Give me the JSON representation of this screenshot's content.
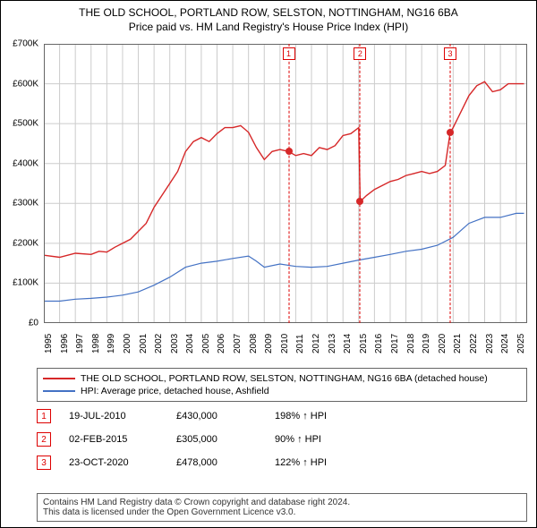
{
  "title": "THE OLD SCHOOL, PORTLAND ROW, SELSTON, NOTTINGHAM, NG16 6BA",
  "subtitle": "Price paid vs. HM Land Registry's House Price Index (HPI)",
  "chart": {
    "type": "line",
    "background_color": "#ffffff",
    "grid_color": "#cccccc",
    "xlim": [
      1995,
      2025.7
    ],
    "ylim": [
      0,
      700000
    ],
    "ytick_step": 100000,
    "ytick_labels": [
      "£0",
      "£100K",
      "£200K",
      "£300K",
      "£400K",
      "£500K",
      "£600K",
      "£700K"
    ],
    "xtick_step": 1,
    "xtick_labels": [
      "1995",
      "1996",
      "1997",
      "1998",
      "1999",
      "2000",
      "2001",
      "2002",
      "2003",
      "2004",
      "2005",
      "2006",
      "2007",
      "2008",
      "2009",
      "2010",
      "2011",
      "2012",
      "2013",
      "2014",
      "2015",
      "2016",
      "2017",
      "2018",
      "2019",
      "2020",
      "2021",
      "2022",
      "2023",
      "2024",
      "2025"
    ],
    "label_fontsize": 10,
    "series": [
      {
        "name": "property",
        "label": "THE OLD SCHOOL, PORTLAND ROW, SELSTON, NOTTINGHAM, NG16 6BA (detached house)",
        "color": "#d62728",
        "line_width": 1.4,
        "data": [
          [
            1995,
            170000
          ],
          [
            1996,
            165000
          ],
          [
            1997,
            175000
          ],
          [
            1998,
            172000
          ],
          [
            1998.5,
            180000
          ],
          [
            1999,
            178000
          ],
          [
            1999.5,
            190000
          ],
          [
            2000,
            200000
          ],
          [
            2000.5,
            210000
          ],
          [
            2001,
            230000
          ],
          [
            2001.5,
            250000
          ],
          [
            2002,
            290000
          ],
          [
            2002.5,
            320000
          ],
          [
            2003,
            350000
          ],
          [
            2003.5,
            380000
          ],
          [
            2004,
            430000
          ],
          [
            2004.5,
            455000
          ],
          [
            2005,
            465000
          ],
          [
            2005.5,
            455000
          ],
          [
            2006,
            475000
          ],
          [
            2006.5,
            490000
          ],
          [
            2007,
            490000
          ],
          [
            2007.5,
            495000
          ],
          [
            2008,
            478000
          ],
          [
            2008.5,
            440000
          ],
          [
            2009,
            410000
          ],
          [
            2009.5,
            430000
          ],
          [
            2010,
            435000
          ],
          [
            2010.55,
            430000
          ],
          [
            2011,
            420000
          ],
          [
            2011.5,
            425000
          ],
          [
            2012,
            420000
          ],
          [
            2012.5,
            440000
          ],
          [
            2013,
            435000
          ],
          [
            2013.5,
            445000
          ],
          [
            2014,
            470000
          ],
          [
            2014.5,
            475000
          ],
          [
            2015,
            490000
          ],
          [
            2015.09,
            305000
          ],
          [
            2015.5,
            320000
          ],
          [
            2016,
            335000
          ],
          [
            2016.5,
            345000
          ],
          [
            2017,
            355000
          ],
          [
            2017.5,
            360000
          ],
          [
            2018,
            370000
          ],
          [
            2018.5,
            375000
          ],
          [
            2019,
            380000
          ],
          [
            2019.5,
            375000
          ],
          [
            2020,
            380000
          ],
          [
            2020.5,
            395000
          ],
          [
            2020.81,
            478000
          ],
          [
            2021,
            490000
          ],
          [
            2021.5,
            530000
          ],
          [
            2022,
            570000
          ],
          [
            2022.5,
            595000
          ],
          [
            2023,
            605000
          ],
          [
            2023.5,
            580000
          ],
          [
            2024,
            585000
          ],
          [
            2024.5,
            600000
          ],
          [
            2025,
            600000
          ],
          [
            2025.5,
            600000
          ]
        ]
      },
      {
        "name": "hpi",
        "label": "HPI: Average price, detached house, Ashfield",
        "color": "#4472c4",
        "line_width": 1.2,
        "data": [
          [
            1995,
            55000
          ],
          [
            1996,
            55000
          ],
          [
            1997,
            60000
          ],
          [
            1998,
            62000
          ],
          [
            1999,
            65000
          ],
          [
            2000,
            70000
          ],
          [
            2001,
            78000
          ],
          [
            2002,
            95000
          ],
          [
            2003,
            115000
          ],
          [
            2004,
            140000
          ],
          [
            2005,
            150000
          ],
          [
            2006,
            155000
          ],
          [
            2007,
            162000
          ],
          [
            2008,
            168000
          ],
          [
            2008.5,
            155000
          ],
          [
            2009,
            140000
          ],
          [
            2010,
            148000
          ],
          [
            2011,
            142000
          ],
          [
            2012,
            140000
          ],
          [
            2013,
            142000
          ],
          [
            2014,
            150000
          ],
          [
            2015,
            158000
          ],
          [
            2016,
            165000
          ],
          [
            2017,
            172000
          ],
          [
            2018,
            180000
          ],
          [
            2019,
            185000
          ],
          [
            2020,
            195000
          ],
          [
            2021,
            215000
          ],
          [
            2022,
            250000
          ],
          [
            2023,
            265000
          ],
          [
            2024,
            265000
          ],
          [
            2025,
            275000
          ],
          [
            2025.5,
            275000
          ]
        ]
      }
    ],
    "sale_markers": [
      {
        "num": "1",
        "x": 2010.55,
        "price": 430000
      },
      {
        "num": "2",
        "x": 2015.09,
        "price": 305000
      },
      {
        "num": "3",
        "x": 2020.81,
        "price": 478000
      }
    ]
  },
  "sales_table": {
    "rows": [
      {
        "num": "1",
        "date": "19-JUL-2010",
        "price": "£430,000",
        "hpi": "198% ↑ HPI"
      },
      {
        "num": "2",
        "date": "02-FEB-2015",
        "price": "£305,000",
        "hpi": "90% ↑ HPI"
      },
      {
        "num": "3",
        "date": "23-OCT-2020",
        "price": "£478,000",
        "hpi": "122% ↑ HPI"
      }
    ]
  },
  "footer": {
    "line1": "Contains HM Land Registry data © Crown copyright and database right 2024.",
    "line2": "This data is licensed under the Open Government Licence v3.0."
  }
}
